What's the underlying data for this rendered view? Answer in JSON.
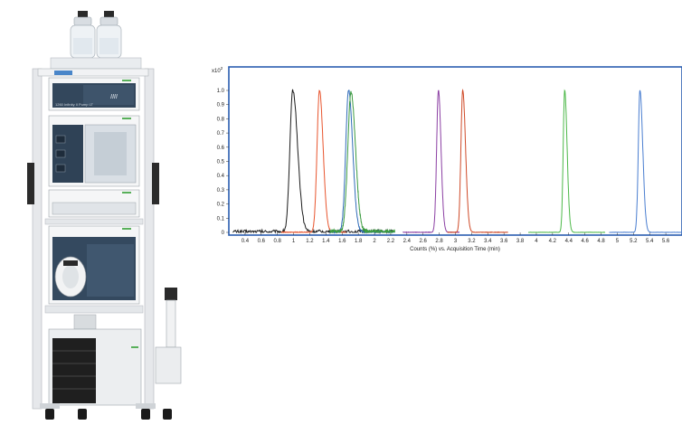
{
  "instrument": {
    "module_label": "1260 Infinity II Pump LT",
    "brand_mark": "Agilent"
  },
  "chart_data": {
    "type": "line",
    "title": "",
    "y_multiplier_label": "x10",
    "y_multiplier_exponent": "2",
    "xlabel": "Counts (%) vs. Acquisition Time (min)",
    "ylabel": "",
    "xlim": [
      0.2,
      5.8
    ],
    "ylim": [
      0,
      1.05
    ],
    "grid": false,
    "legend": "none",
    "x_ticks": [
      "0.4",
      "0.6",
      "0.8",
      "1",
      "1.2",
      "1.4",
      "1.6",
      "1.8",
      "2",
      "2.2",
      "2.4",
      "2.6",
      "2.8",
      "3",
      "3.2",
      "3.4",
      "3.6",
      "3.8",
      "4",
      "4.2",
      "4.4",
      "4.6",
      "4.8",
      "5",
      "5.2",
      "5.4",
      "5.6"
    ],
    "y_ticks": [
      "0",
      "0.1",
      "0.2",
      "0.3",
      "0.4",
      "0.5",
      "0.6",
      "0.7",
      "0.8",
      "0.9",
      "1.0"
    ],
    "series": [
      {
        "color": "#1b1b1b",
        "segment": [
          0.25,
          2.25
        ],
        "peak": 0.99,
        "height": 1.0,
        "width_left": 0.035,
        "width_right": 0.06,
        "baseline": 0.025
      },
      {
        "color": "#e8552e",
        "segment": [
          0.85,
          1.65
        ],
        "peak": 1.32,
        "height": 1.0,
        "width_left": 0.03,
        "width_right": 0.045,
        "baseline": 0.005
      },
      {
        "color": "#2f6bb8",
        "segment": [
          1.45,
          2.25
        ],
        "peak": 1.68,
        "height": 1.0,
        "width_left": 0.035,
        "width_right": 0.05,
        "baseline": 0.015
      },
      {
        "color": "#3c9b40",
        "segment": [
          1.45,
          2.25
        ],
        "peak": 1.71,
        "height": 0.98,
        "width_left": 0.04,
        "width_right": 0.055,
        "baseline": 0.03
      },
      {
        "color": "#8b3fa3",
        "segment": [
          2.35,
          3.05
        ],
        "peak": 2.79,
        "height": 1.0,
        "width_left": 0.022,
        "width_right": 0.032,
        "baseline": 0.003
      },
      {
        "color": "#cf4a28",
        "segment": [
          2.9,
          3.65
        ],
        "peak": 3.09,
        "height": 1.0,
        "width_left": 0.022,
        "width_right": 0.035,
        "baseline": 0.003
      },
      {
        "color": "#4cb848",
        "segment": [
          3.9,
          4.85
        ],
        "peak": 4.35,
        "height": 1.0,
        "width_left": 0.018,
        "width_right": 0.03,
        "baseline": 0.002
      },
      {
        "color": "#4a7ed0",
        "segment": [
          4.9,
          5.8
        ],
        "peak": 5.28,
        "height": 1.0,
        "width_left": 0.02,
        "width_right": 0.035,
        "baseline": 0.002
      }
    ]
  }
}
